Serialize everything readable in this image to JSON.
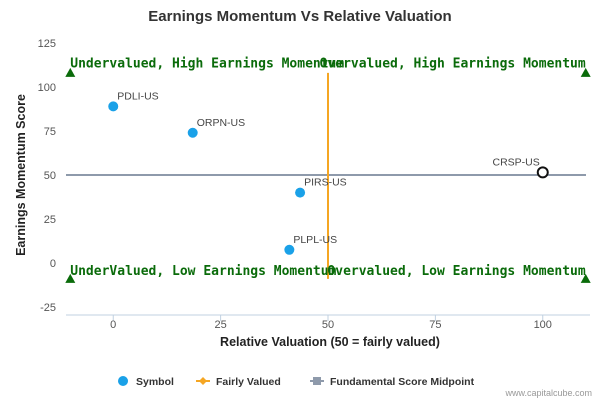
{
  "chart_data": {
    "type": "scatter",
    "title": "Earnings Momentum Vs Relative Valuation",
    "xlabel": "Relative Valuation (50 = fairly valued)",
    "ylabel": "Earnings Momentum Score",
    "xlim": [
      -11,
      111
    ],
    "ylim": [
      -25,
      125
    ],
    "x_ticks": [
      0,
      25,
      50,
      75,
      100
    ],
    "y_ticks": [
      -25,
      0,
      25,
      50,
      75,
      100,
      125
    ],
    "grid": false,
    "legend_position": "bottom",
    "points": [
      {
        "label": "PDLI-US",
        "x": 0,
        "y": 89,
        "highlight": false
      },
      {
        "label": "ORPN-US",
        "x": 18.5,
        "y": 74,
        "highlight": false
      },
      {
        "label": "PIRS-US",
        "x": 43.5,
        "y": 40,
        "highlight": false
      },
      {
        "label": "PLPL-US",
        "x": 41,
        "y": 7.5,
        "highlight": false
      },
      {
        "label": "CRSP-US",
        "x": 100,
        "y": 51.5,
        "highlight": true
      }
    ],
    "fair_value_x": 50,
    "fair_value_y_range": [
      -9,
      108
    ],
    "midpoint_y": 50,
    "quadrant_labels": [
      {
        "text": "Undervalued, High Earnings Momentum",
        "x": -10,
        "y": 114,
        "anchor": "start"
      },
      {
        "text": "Overvalued, High Earnings Momentum",
        "x": 110,
        "y": 114,
        "anchor": "end"
      },
      {
        "text": "UnderValued, Low Earnings Momentum",
        "x": -10,
        "y": -4,
        "anchor": "start"
      },
      {
        "text": "Overvalued, Low Earnings Momentum",
        "x": 110,
        "y": -4,
        "anchor": "end"
      }
    ],
    "corner_markers": [
      {
        "x": -10,
        "y": 108,
        "dir": "up"
      },
      {
        "x": 110,
        "y": 108,
        "dir": "up"
      },
      {
        "x": -10,
        "y": -9,
        "dir": "up"
      },
      {
        "x": 110,
        "y": -9,
        "dir": "up"
      }
    ],
    "legend": [
      {
        "name": "Symbol",
        "kind": "dot"
      },
      {
        "name": "Fairly Valued",
        "kind": "diamond-line"
      },
      {
        "name": "Fundamental Score Midpoint",
        "kind": "square-line"
      }
    ],
    "credit": "www.capitalcube.com"
  },
  "colors": {
    "symbol": "#1aa1e8",
    "fair_value": "#f5a623",
    "midpoint": "#8e9aab",
    "quadrant_text": "#0a6b0a",
    "marker": "#0a6b0a",
    "axis": "#c0d0e0",
    "tick_text": "#555555",
    "title": "#333333",
    "point_label": "#444444"
  }
}
